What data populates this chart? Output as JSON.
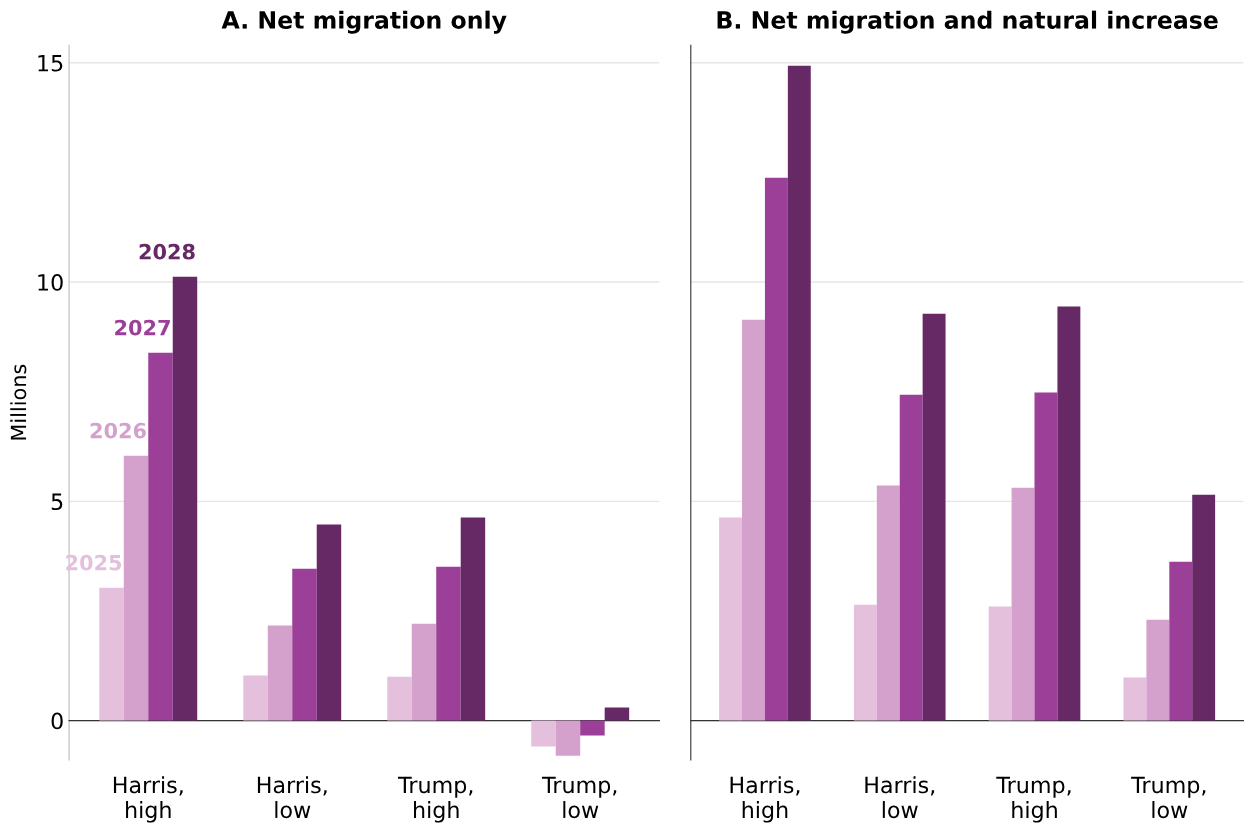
{
  "chart_data": [
    {
      "type": "bar",
      "title": "A. Net migration only",
      "ylabel": "Millions",
      "categories": [
        "Harris,\nhigh",
        "Harris,\nlow",
        "Trump,\nhigh",
        "Trump,\nlow"
      ],
      "series": [
        {
          "name": "2025",
          "color": "#e4c0dd",
          "values": [
            3.03,
            1.03,
            1.0,
            -0.59
          ]
        },
        {
          "name": "2026",
          "color": "#d4a0cc",
          "values": [
            6.04,
            2.17,
            2.21,
            -0.8
          ]
        },
        {
          "name": "2027",
          "color": "#9b3f98",
          "values": [
            8.39,
            3.46,
            3.51,
            -0.34
          ]
        },
        {
          "name": "2028",
          "color": "#672866",
          "values": [
            10.12,
            4.47,
            4.63,
            0.3
          ]
        }
      ],
      "ylim": [
        -0.9,
        15.4
      ],
      "yticks": [
        0,
        5,
        10,
        15
      ],
      "grid": "y",
      "legend": false
    },
    {
      "type": "bar",
      "title": "B. Net migration and natural increase",
      "categories": [
        "Harris,\nhigh",
        "Harris,\nlow",
        "Trump,\nhigh",
        "Trump,\nlow"
      ],
      "series": [
        {
          "color": "#e4c0dd",
          "values": [
            4.63,
            2.64,
            2.6,
            0.98
          ]
        },
        {
          "color": "#d4a0cc",
          "values": [
            9.14,
            5.36,
            5.31,
            2.3
          ]
        },
        {
          "color": "#9b3f98",
          "values": [
            12.38,
            7.43,
            7.48,
            3.62
          ]
        },
        {
          "color": "#672866",
          "values": [
            14.93,
            9.28,
            9.44,
            5.15
          ]
        }
      ],
      "ylim": [
        -0.9,
        15.4
      ],
      "yticks": [
        0,
        5,
        10,
        15
      ],
      "grid": "y",
      "legend": false,
      "tick_labels": "x"
    }
  ]
}
